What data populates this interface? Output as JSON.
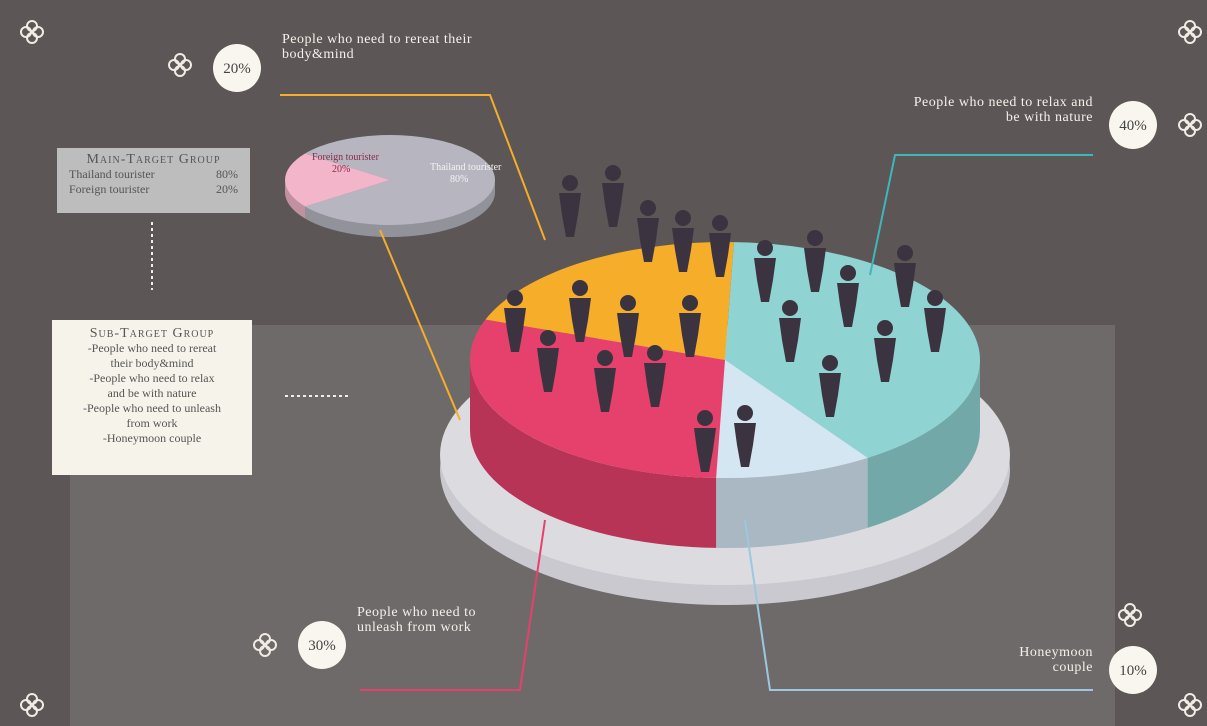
{
  "chart_data": [
    {
      "type": "pie",
      "categories": [
        "People who need to rereat their body&mind",
        "People who need to relax and be with nature",
        "Honeymoon couple",
        "People who need to unleash from work"
      ],
      "values": [
        20,
        40,
        10,
        30
      ],
      "value_labels": [
        "20%",
        "40%",
        "10%",
        "30%"
      ],
      "colors": [
        "#f6ad2a",
        "#8fd3d2",
        "#d3e6f2",
        "#e6416c"
      ]
    },
    {
      "type": "pie",
      "categories": [
        "Foreign tourister",
        "Thailand tourister"
      ],
      "values": [
        20,
        80
      ],
      "value_labels": [
        "20%",
        "80%"
      ],
      "colors": [
        "#f2b5c9",
        "#b7b6c0"
      ]
    }
  ],
  "main_target": {
    "title": "Main-Target Group",
    "rows": [
      [
        "Thailand tourister",
        "80%"
      ],
      [
        "Foreign tourister",
        "20%"
      ]
    ]
  },
  "sub_target": {
    "title": "Sub-Target Group",
    "items": [
      "-People who need to rereat their body&mind",
      "-People who need to relax and be with nature",
      "-People who need to unleash from work",
      "-Honeymoon couple"
    ]
  }
}
